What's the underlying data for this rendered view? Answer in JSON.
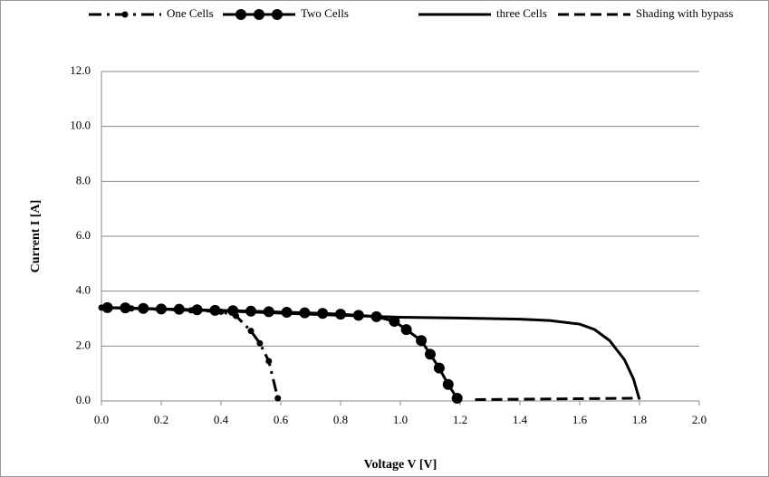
{
  "chart_data": {
    "type": "line",
    "xlabel": "Voltage V [V]",
    "ylabel": "Current I [A]",
    "xlim": [
      0,
      2.0
    ],
    "ylim": [
      0,
      12.0
    ],
    "xticks": [
      {
        "value": 0,
        "label": "0.0"
      },
      0.2,
      0.4,
      0.6,
      0.8,
      {
        "value": 1,
        "label": "1.0"
      },
      1.2,
      1.4,
      1.6,
      1.8,
      {
        "value": 2,
        "label": "2.0"
      }
    ],
    "yticks": [
      {
        "value": 0,
        "label": "0.0"
      },
      {
        "value": 2,
        "label": "2.0"
      },
      {
        "value": 4,
        "label": "4.0"
      },
      {
        "value": 6,
        "label": "6.0"
      },
      {
        "value": 8,
        "label": "8.0"
      },
      {
        "value": 10,
        "label": "10.0"
      },
      {
        "value": 12,
        "label": "12.0"
      }
    ],
    "grid": true,
    "legend": "top",
    "series": [
      {
        "name": "One Cells",
        "color": "#000000",
        "linestyle": "dashdot",
        "marker": "dot",
        "x": [
          0,
          0.1,
          0.2,
          0.3,
          0.4,
          0.45,
          0.5,
          0.53,
          0.56,
          0.59
        ],
        "values": [
          3.4,
          3.37,
          3.33,
          3.3,
          3.25,
          3.1,
          2.55,
          2.1,
          1.45,
          0.1
        ]
      },
      {
        "name": "Two Cells",
        "color": "#000000",
        "linestyle": "solid",
        "marker": "circle",
        "x": [
          0.02,
          0.08,
          0.14,
          0.2,
          0.26,
          0.32,
          0.38,
          0.44,
          0.5,
          0.56,
          0.62,
          0.68,
          0.74,
          0.8,
          0.86,
          0.92,
          0.98,
          1.02,
          1.07,
          1.1,
          1.13,
          1.16,
          1.19
        ],
        "values": [
          3.4,
          3.39,
          3.37,
          3.35,
          3.34,
          3.32,
          3.3,
          3.29,
          3.27,
          3.25,
          3.23,
          3.21,
          3.19,
          3.16,
          3.12,
          3.07,
          2.9,
          2.6,
          2.2,
          1.7,
          1.2,
          0.6,
          0.1
        ]
      },
      {
        "name": "three Cells",
        "color": "#000000",
        "linestyle": "solid",
        "marker": "none",
        "x": [
          0,
          0.4,
          0.8,
          1.0,
          1.2,
          1.4,
          1.5,
          1.6,
          1.65,
          1.7,
          1.75,
          1.78,
          1.8
        ],
        "values": [
          3.4,
          3.28,
          3.12,
          3.05,
          3.02,
          2.98,
          2.93,
          2.8,
          2.6,
          2.2,
          1.5,
          0.8,
          0.05
        ]
      },
      {
        "name": "Shading with bypass",
        "color": "#000000",
        "linestyle": "dashed",
        "marker": "none",
        "x": [
          1.25,
          1.8
        ],
        "values": [
          0.05,
          0.1
        ]
      }
    ]
  }
}
